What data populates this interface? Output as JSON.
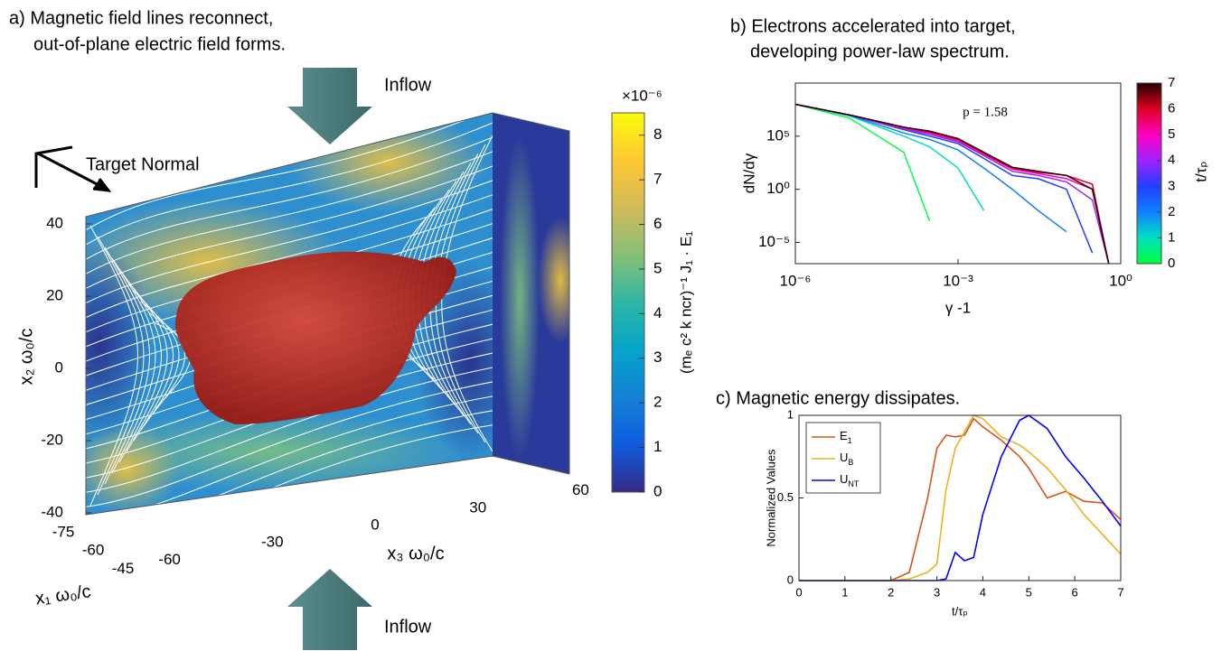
{
  "chart_data": [
    {
      "type": "volume",
      "title": [
        "a) Magnetic field lines reconnect,",
        "out-of-plane electric field forms."
      ],
      "annotations": [
        "Inflow",
        "Inflow",
        "Target Normal"
      ],
      "x1label": "x₁ ω₀/c",
      "x2label": "x₂ ω₀/c",
      "x3label": "x₃ ω₀/c",
      "x1ticks": [
        -75,
        -60,
        -45
      ],
      "x2ticks": [
        -40,
        -20,
        0,
        20,
        40
      ],
      "x3ticks": [
        -60,
        -30,
        0,
        30,
        60
      ],
      "colorbar": {
        "label": "(mₑ c² k ncr)⁻¹ J₁ · E₁",
        "scale_label": "×10⁻⁶",
        "lim": [
          0,
          8.5
        ],
        "ticks": [
          0,
          1,
          2,
          3,
          4,
          5,
          6,
          7,
          8
        ],
        "colormap": [
          "#352a87",
          "#0f5cdd",
          "#1481d6",
          "#06a4ca",
          "#2eb7a4",
          "#87bf77",
          "#d1bb59",
          "#fec832",
          "#f9fb0e"
        ]
      }
    },
    {
      "type": "line",
      "title": [
        "b) Electrons accelerated into target,",
        "developing power-law spectrum."
      ],
      "xlabel": "γ -1",
      "ylabel": "dN/dγ",
      "xscale": "log",
      "yscale": "log",
      "xlim": [
        1e-06,
        1
      ],
      "ylim": [
        1e-07,
        10000000000.0
      ],
      "xticks": [
        {
          "value": 1e-06,
          "label": "10⁻⁶"
        },
        {
          "value": 0.001,
          "label": "10⁻³"
        },
        {
          "value": 1,
          "label": "10⁰"
        }
      ],
      "yticks": [
        {
          "value": 1e-05,
          "label": "10⁻⁵"
        },
        {
          "value": 1,
          "label": "10⁰"
        },
        {
          "value": 100000,
          "label": "10⁵"
        }
      ],
      "annotation": "p = 1.58",
      "x": [
        1e-06,
        1e-05,
        0.0001,
        0.0003,
        0.001,
        0.003,
        0.01,
        0.03,
        0.1,
        0.3,
        0.6
      ],
      "series": [
        {
          "color": "#00ff40",
          "values": [
            100000000.0,
            5000000.0,
            3000,
            0.001,
            null,
            null,
            null,
            null,
            null,
            null,
            null
          ]
        },
        {
          "color": "#00e0c0",
          "values": [
            100000000.0,
            8000000.0,
            100000,
            10000,
            100,
            0.01,
            null,
            null,
            null,
            null,
            null
          ]
        },
        {
          "color": "#1080ff",
          "values": [
            100000000.0,
            9000000.0,
            200000,
            50000,
            5000,
            100,
            1,
            0.01,
            0.0001,
            null,
            null
          ]
        },
        {
          "color": "#2040ff",
          "values": [
            100000000.0,
            10000000.0,
            400000,
            100000,
            20000,
            800,
            20,
            10,
            1,
            1e-06,
            null
          ]
        },
        {
          "color": "#a020ff",
          "values": [
            100000000.0,
            10000000.0,
            500000,
            150000,
            30000,
            1500,
            50,
            20,
            5,
            0.1,
            1e-07
          ]
        },
        {
          "color": "#ff00c0",
          "values": [
            100000000.0,
            10000000.0,
            600000,
            200000,
            40000,
            2000,
            80,
            30,
            10,
            1,
            1e-07
          ]
        },
        {
          "color": "#e00020",
          "values": [
            100000000.0,
            10000000.0,
            700000,
            250000,
            50000,
            2500,
            100,
            40,
            20,
            3,
            1e-07
          ]
        },
        {
          "color": "#200000",
          "values": [
            100000000.0,
            10000000.0,
            700000,
            300000,
            60000,
            3000,
            120,
            50,
            20,
            1,
            1e-07
          ]
        }
      ],
      "colorbar": {
        "label": "t/τₚ",
        "lim": [
          0,
          7
        ],
        "ticks": [
          0,
          1,
          2,
          3,
          4,
          5,
          6,
          7
        ]
      }
    },
    {
      "type": "line",
      "title": "c) Magnetic energy dissipates.",
      "xlabel": "t/τₚ",
      "ylabel": "Normalized Values",
      "xlim": [
        0,
        7
      ],
      "ylim": [
        0,
        1
      ],
      "xticks": [
        0,
        1,
        2,
        3,
        4,
        5,
        6,
        7
      ],
      "yticks": [
        0,
        0.5,
        1
      ],
      "legend": "upper left",
      "x": [
        0,
        1,
        2,
        2.4,
        2.8,
        3,
        3.2,
        3.4,
        3.6,
        3.8,
        4,
        4.4,
        4.8,
        5,
        5.4,
        5.8,
        6.2,
        6.6,
        7
      ],
      "series": [
        {
          "name": "E1",
          "color": "#d95319",
          "values": [
            0,
            0,
            0,
            0.05,
            0.5,
            0.8,
            0.88,
            0.87,
            0.88,
            0.98,
            0.93,
            0.85,
            0.75,
            0.68,
            0.5,
            0.54,
            0.48,
            0.47,
            0.37
          ]
        },
        {
          "name": "UB",
          "color": "#edb120",
          "values": [
            0,
            0,
            0,
            0.01,
            0.05,
            0.1,
            0.55,
            0.8,
            0.9,
            1,
            0.98,
            0.87,
            0.82,
            0.78,
            0.68,
            0.55,
            0.4,
            0.28,
            0.16
          ]
        },
        {
          "name": "UNT",
          "color": "#0000ff",
          "values": [
            0,
            0,
            0,
            0,
            0,
            0,
            0.01,
            0.17,
            0.12,
            0.14,
            0.4,
            0.75,
            0.97,
            1,
            0.92,
            0.75,
            0.62,
            0.48,
            0.33
          ]
        }
      ]
    }
  ]
}
